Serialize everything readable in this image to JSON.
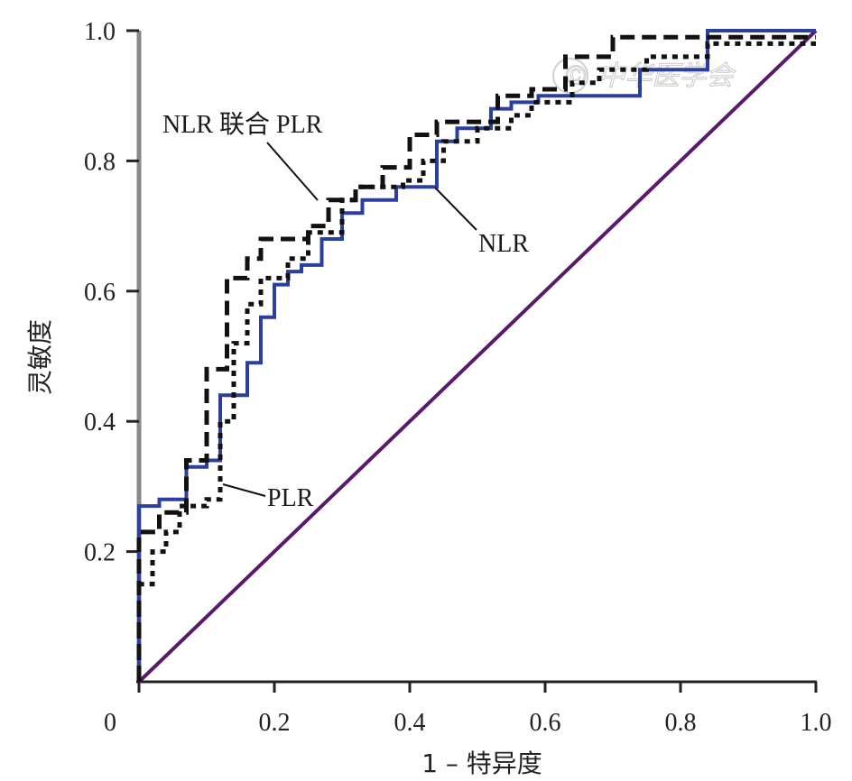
{
  "chart_data": {
    "type": "line",
    "xlabel": "1 – 特异度",
    "ylabel": "灵敏度",
    "xlim": [
      0,
      1.0
    ],
    "ylim": [
      0,
      1.0
    ],
    "x_ticks": [
      "0",
      "0.2",
      "0.4",
      "0.6",
      "0.8",
      "1.0"
    ],
    "y_ticks": [
      "0.2",
      "0.4",
      "0.6",
      "0.8",
      "1.0"
    ],
    "grid": false,
    "annotations": [
      "NLR 联合 PLR",
      "NLR",
      "PLR"
    ],
    "watermark": "© 中华医学会",
    "colors": {
      "nlr": "#2a3f9e",
      "plr": "#111111",
      "combined": "#111111",
      "reference": "#5a1a6b"
    },
    "series": [
      {
        "name": "NLR",
        "style": "solid",
        "points": [
          [
            0,
            0
          ],
          [
            0,
            0.27
          ],
          [
            0.03,
            0.27
          ],
          [
            0.03,
            0.28
          ],
          [
            0.07,
            0.28
          ],
          [
            0.07,
            0.33
          ],
          [
            0.1,
            0.33
          ],
          [
            0.1,
            0.34
          ],
          [
            0.12,
            0.34
          ],
          [
            0.12,
            0.44
          ],
          [
            0.16,
            0.44
          ],
          [
            0.16,
            0.49
          ],
          [
            0.18,
            0.49
          ],
          [
            0.18,
            0.56
          ],
          [
            0.2,
            0.56
          ],
          [
            0.2,
            0.61
          ],
          [
            0.22,
            0.61
          ],
          [
            0.22,
            0.63
          ],
          [
            0.24,
            0.63
          ],
          [
            0.24,
            0.64
          ],
          [
            0.27,
            0.64
          ],
          [
            0.27,
            0.68
          ],
          [
            0.3,
            0.68
          ],
          [
            0.3,
            0.72
          ],
          [
            0.33,
            0.72
          ],
          [
            0.33,
            0.74
          ],
          [
            0.38,
            0.74
          ],
          [
            0.38,
            0.76
          ],
          [
            0.44,
            0.76
          ],
          [
            0.44,
            0.83
          ],
          [
            0.47,
            0.83
          ],
          [
            0.47,
            0.85
          ],
          [
            0.52,
            0.85
          ],
          [
            0.52,
            0.88
          ],
          [
            0.55,
            0.88
          ],
          [
            0.55,
            0.89
          ],
          [
            0.59,
            0.89
          ],
          [
            0.59,
            0.9
          ],
          [
            0.74,
            0.9
          ],
          [
            0.74,
            0.94
          ],
          [
            0.84,
            0.94
          ],
          [
            0.84,
            1.0
          ],
          [
            1.0,
            1.0
          ]
        ]
      },
      {
        "name": "PLR",
        "style": "dotted",
        "points": [
          [
            0,
            0
          ],
          [
            0,
            0.15
          ],
          [
            0.02,
            0.15
          ],
          [
            0.02,
            0.2
          ],
          [
            0.04,
            0.2
          ],
          [
            0.04,
            0.23
          ],
          [
            0.06,
            0.23
          ],
          [
            0.06,
            0.27
          ],
          [
            0.1,
            0.27
          ],
          [
            0.1,
            0.28
          ],
          [
            0.12,
            0.28
          ],
          [
            0.12,
            0.4
          ],
          [
            0.14,
            0.4
          ],
          [
            0.14,
            0.52
          ],
          [
            0.16,
            0.52
          ],
          [
            0.16,
            0.58
          ],
          [
            0.18,
            0.58
          ],
          [
            0.18,
            0.62
          ],
          [
            0.22,
            0.62
          ],
          [
            0.22,
            0.65
          ],
          [
            0.25,
            0.65
          ],
          [
            0.25,
            0.69
          ],
          [
            0.3,
            0.69
          ],
          [
            0.3,
            0.74
          ],
          [
            0.32,
            0.74
          ],
          [
            0.32,
            0.76
          ],
          [
            0.39,
            0.76
          ],
          [
            0.39,
            0.77
          ],
          [
            0.42,
            0.77
          ],
          [
            0.42,
            0.8
          ],
          [
            0.45,
            0.8
          ],
          [
            0.45,
            0.83
          ],
          [
            0.5,
            0.83
          ],
          [
            0.5,
            0.85
          ],
          [
            0.55,
            0.85
          ],
          [
            0.55,
            0.87
          ],
          [
            0.58,
            0.87
          ],
          [
            0.58,
            0.89
          ],
          [
            0.64,
            0.89
          ],
          [
            0.64,
            0.92
          ],
          [
            0.68,
            0.92
          ],
          [
            0.68,
            0.94
          ],
          [
            0.75,
            0.94
          ],
          [
            0.75,
            0.96
          ],
          [
            0.84,
            0.96
          ],
          [
            0.84,
            0.98
          ],
          [
            1.0,
            0.98
          ]
        ]
      },
      {
        "name": "NLR 联合 PLR",
        "style": "dashed",
        "points": [
          [
            0,
            0
          ],
          [
            0,
            0.23
          ],
          [
            0.03,
            0.23
          ],
          [
            0.03,
            0.26
          ],
          [
            0.07,
            0.26
          ],
          [
            0.07,
            0.34
          ],
          [
            0.1,
            0.34
          ],
          [
            0.1,
            0.48
          ],
          [
            0.13,
            0.48
          ],
          [
            0.13,
            0.62
          ],
          [
            0.16,
            0.62
          ],
          [
            0.16,
            0.65
          ],
          [
            0.18,
            0.65
          ],
          [
            0.18,
            0.68
          ],
          [
            0.25,
            0.68
          ],
          [
            0.25,
            0.7
          ],
          [
            0.28,
            0.7
          ],
          [
            0.28,
            0.74
          ],
          [
            0.32,
            0.74
          ],
          [
            0.32,
            0.76
          ],
          [
            0.36,
            0.76
          ],
          [
            0.36,
            0.79
          ],
          [
            0.4,
            0.79
          ],
          [
            0.4,
            0.84
          ],
          [
            0.44,
            0.84
          ],
          [
            0.44,
            0.86
          ],
          [
            0.53,
            0.86
          ],
          [
            0.53,
            0.9
          ],
          [
            0.58,
            0.9
          ],
          [
            0.58,
            0.91
          ],
          [
            0.63,
            0.91
          ],
          [
            0.63,
            0.96
          ],
          [
            0.7,
            0.96
          ],
          [
            0.7,
            0.99
          ],
          [
            1.0,
            0.99
          ]
        ]
      },
      {
        "name": "reference",
        "style": "solid",
        "points": [
          [
            0,
            0
          ],
          [
            1.0,
            1.0
          ]
        ]
      }
    ]
  }
}
